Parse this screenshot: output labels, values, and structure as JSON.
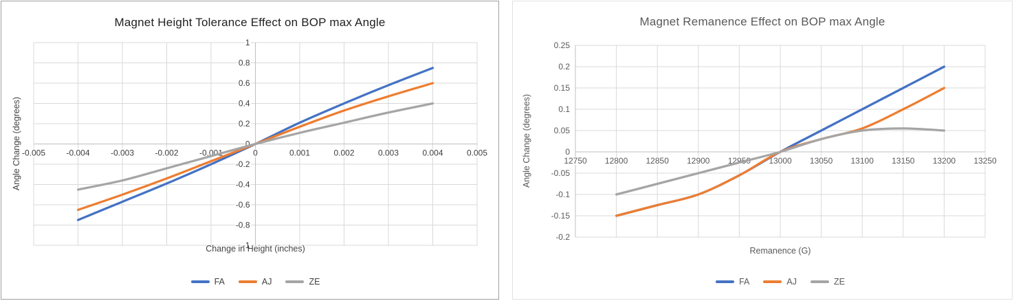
{
  "page": {
    "background": "#ffffff"
  },
  "colors": {
    "series_blue": "#4472C4",
    "series_orange": "#ED7D31",
    "series_gray": "#A5A5A5",
    "gridline": "#d9d9d9",
    "axis_line": "#bfbfbf",
    "left_card_border": "#9e9e9e",
    "right_card_border": "#e2e2e2"
  },
  "legend": {
    "labels": [
      "FA",
      "AJ",
      "ZE"
    ]
  },
  "chart_data": [
    {
      "type": "line",
      "title": "Magnet Height Tolerance Effect on BOP max Angle",
      "xlabel": "Change in Height (inches)",
      "ylabel": "Angle Change (degrees)",
      "xlim": [
        -0.005,
        0.005
      ],
      "ylim": [
        -1,
        1
      ],
      "grid": true,
      "legend_position": "bottom",
      "x_ticks": [
        "-0.005",
        "-0.004",
        "-0.003",
        "-0.002",
        "-0.001",
        "0",
        "0.001",
        "0.002",
        "0.003",
        "0.004",
        "0.005"
      ],
      "y_ticks": [
        "1",
        "0.8",
        "0.6",
        "0.4",
        "0.2",
        "0",
        "-0.2",
        "-0.4",
        "-0.6",
        "-0.8",
        "-1"
      ],
      "x_tick_values": [
        -0.005,
        -0.004,
        -0.003,
        -0.002,
        -0.001,
        0,
        0.001,
        0.002,
        0.003,
        0.004,
        0.005
      ],
      "y_tick_values": [
        1,
        0.8,
        0.6,
        0.4,
        0.2,
        0,
        -0.2,
        -0.4,
        -0.6,
        -0.8,
        -1
      ],
      "x": [
        -0.004,
        -0.003,
        -0.002,
        -0.001,
        0,
        0.001,
        0.002,
        0.003,
        0.004
      ],
      "series": [
        {
          "name": "FA",
          "color": "#4472C4",
          "values": [
            -0.75,
            -0.57,
            -0.39,
            -0.2,
            0,
            0.21,
            0.4,
            0.58,
            0.75
          ]
        },
        {
          "name": "AJ",
          "color": "#ED7D31",
          "values": [
            -0.65,
            -0.5,
            -0.34,
            -0.17,
            0,
            0.17,
            0.33,
            0.47,
            0.6
          ]
        },
        {
          "name": "ZE",
          "color": "#A5A5A5",
          "values": [
            -0.45,
            -0.36,
            -0.24,
            -0.12,
            0,
            0.11,
            0.21,
            0.31,
            0.4
          ]
        }
      ]
    },
    {
      "type": "line",
      "title": "Magnet Remanence Effect on BOP max Angle",
      "xlabel": "Remanence (G)",
      "ylabel": "Angle Change (degrees)",
      "xlim": [
        12750,
        13250
      ],
      "ylim": [
        -0.2,
        0.25
      ],
      "grid": true,
      "legend_position": "bottom",
      "x_ticks": [
        "12750",
        "12800",
        "12850",
        "12900",
        "12950",
        "13000",
        "13050",
        "13100",
        "13150",
        "13200",
        "13250"
      ],
      "y_ticks": [
        "0.25",
        "0.2",
        "0.15",
        "0.1",
        "0.05",
        "0",
        "-0.05",
        "-0.1",
        "-0.15",
        "-0.2"
      ],
      "x_tick_values": [
        12750,
        12800,
        12850,
        12900,
        12950,
        13000,
        13050,
        13100,
        13150,
        13200,
        13250
      ],
      "y_tick_values": [
        0.25,
        0.2,
        0.15,
        0.1,
        0.05,
        0,
        -0.05,
        -0.1,
        -0.15,
        -0.2
      ],
      "x": [
        12800,
        12850,
        12900,
        12950,
        13000,
        13050,
        13100,
        13150,
        13200
      ],
      "series": [
        {
          "name": "FA",
          "color": "#4472C4",
          "values": [
            -0.15,
            -0.125,
            -0.1,
            -0.055,
            0,
            0.05,
            0.1,
            0.15,
            0.2
          ]
        },
        {
          "name": "AJ",
          "color": "#ED7D31",
          "values": [
            -0.15,
            -0.125,
            -0.1,
            -0.055,
            0,
            0.03,
            0.055,
            0.1,
            0.15
          ]
        },
        {
          "name": "ZE",
          "color": "#A5A5A5",
          "values": [
            -0.1,
            -0.075,
            -0.05,
            -0.025,
            0,
            0.03,
            0.05,
            0.055,
            0.05
          ]
        }
      ]
    }
  ]
}
